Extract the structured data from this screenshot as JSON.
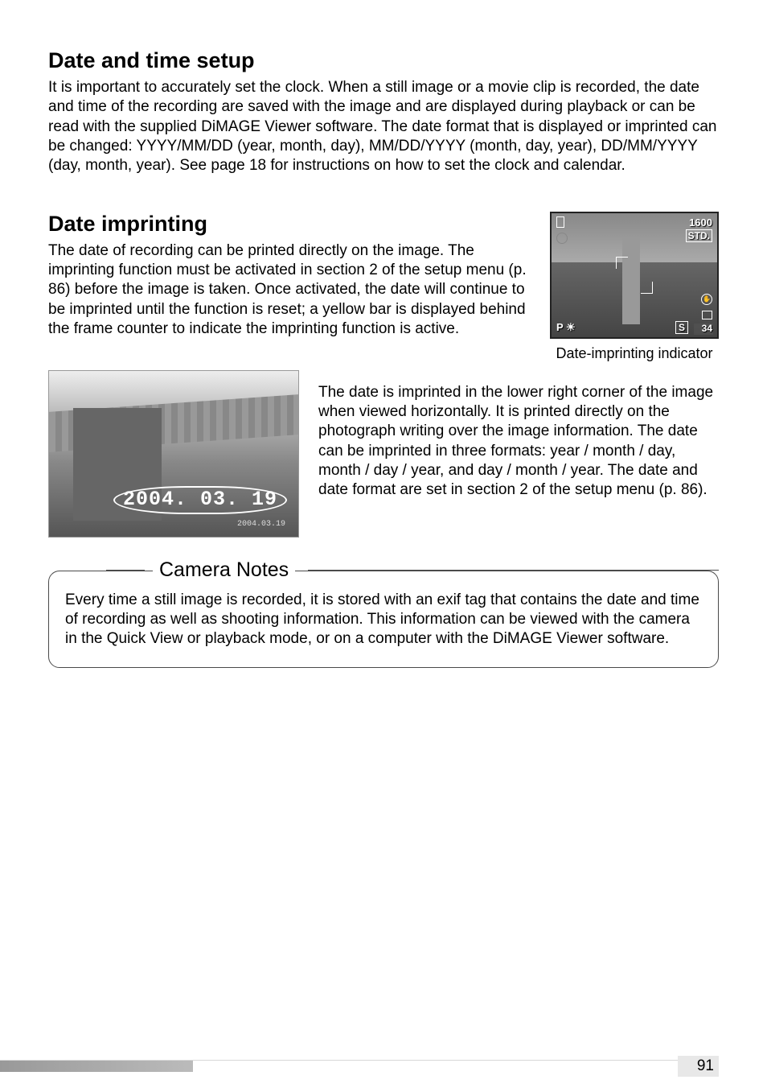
{
  "section1": {
    "title": "Date and time setup",
    "body": "It is important to accurately set the clock. When a still image or a movie clip is recorded, the date and time of the recording are saved with the image and are displayed during playback or can be read with the supplied DiMAGE Viewer software. The date format that is displayed or imprinted can be changed: YYYY/MM/DD (year, month, day), MM/DD/YYYY (month, day, year), DD/MM/YYYY (day, month, year). See page 18 for instructions on how to set the clock and calendar."
  },
  "section2": {
    "title": "Date imprinting",
    "body": "The date of recording can be printed directly on the image. The imprinting function must be activated in section 2 of the setup menu (p. 86) before the image is taken. Once activated, the date will continue to be imprinted until the function is reset; a yellow bar is displayed behind the frame counter to indicate the imprinting function is active.",
    "lcd": {
      "resolution": "1600",
      "quality": "STD.",
      "mode": "P",
      "drive": "S",
      "counter": "34"
    },
    "caption": "Date-imprinting indicator"
  },
  "section3": {
    "date_overlay": "2004. 03. 19",
    "date_small": "2004.03.19",
    "body": "The date is imprinted in the lower right corner of the image when viewed horizontally. It is printed directly on the photograph writing over the image information. The date can be imprinted in three formats: year / month / day, month / day / year, and day / month / year. The date and date format are set in section 2 of the setup menu (p. 86)."
  },
  "notes": {
    "title": "Camera Notes",
    "body": "Every time a still image is recorded, it is stored with an exif tag that contains the date and time of recording as well as shooting information. This information can be viewed with the camera in the Quick View or playback mode, or on a computer with the DiMAGE Viewer software."
  },
  "page_number": "91"
}
